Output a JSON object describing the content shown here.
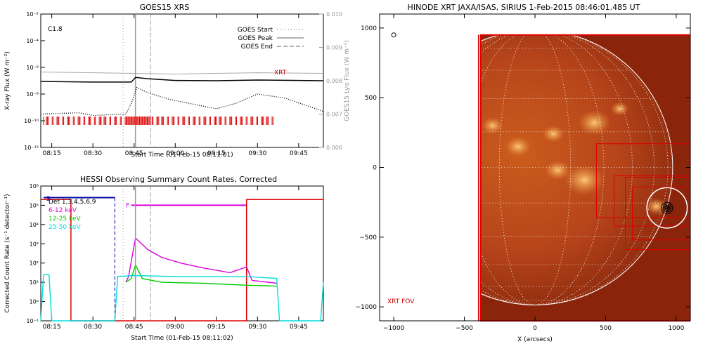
{
  "chart_data": [
    {
      "type": "line",
      "title": "GOES15 XRS",
      "xlabel": "Start Time (01-Feb-15 08:11:01)",
      "ylabel": "X-ray Flux (W m⁻²)",
      "y2label": "GOES15 Lyα Flux (W m⁻²)",
      "ylog": true,
      "ylim_exp": [
        -12,
        -2
      ],
      "y_ticks": [
        "10⁻¹²",
        "10⁻¹⁰",
        "10⁻⁸",
        "10⁻⁶",
        "10⁻⁴",
        "10⁻²"
      ],
      "y2lim": [
        0.006,
        0.01
      ],
      "y2_ticks": [
        "0.006",
        "0.007",
        "0.008",
        "0.009",
        "0.010"
      ],
      "x_ticks": [
        "08:15",
        "08:30",
        "08:45",
        "09:00",
        "09:15",
        "09:30",
        "09:45"
      ],
      "x_tick_minutes": [
        15,
        30,
        45,
        60,
        75,
        90,
        105
      ],
      "xlim_minutes": [
        11,
        114
      ],
      "flare_class": "C1.8",
      "legend": [
        {
          "label": "GOES Start",
          "style": "dotted"
        },
        {
          "label": "GOES Peak",
          "style": "solid"
        },
        {
          "label": "GOES End",
          "style": "dashed"
        }
      ],
      "events_minutes": {
        "start": 41,
        "peak": 45.5,
        "end": 51
      },
      "xrt_label": "XRT",
      "series": [
        {
          "name": "",
          "color": "#000000",
          "log10": [
            [
              11,
              -7.05
            ],
            [
              30,
              -7.1
            ],
            [
              44,
              -7.1
            ],
            [
              45.5,
              -6.75
            ],
            [
              50,
              -6.85
            ],
            [
              60,
              -6.98
            ],
            [
              75,
              -7.0
            ],
            [
              90,
              -6.95
            ],
            [
              114,
              -7.0
            ]
          ]
        },
        {
          "name": "",
          "color": "#000000",
          "style": "dotted",
          "log10": [
            [
              11,
              -9.5
            ],
            [
              25,
              -9.4
            ],
            [
              30,
              -9.6
            ],
            [
              42,
              -9.5
            ],
            [
              44,
              -8.7
            ],
            [
              46,
              -7.5
            ],
            [
              50,
              -7.9
            ],
            [
              58,
              -8.4
            ],
            [
              70,
              -8.9
            ],
            [
              75,
              -9.1
            ],
            [
              82,
              -8.7
            ],
            [
              90,
              -8.0
            ],
            [
              100,
              -8.3
            ],
            [
              114,
              -9.3
            ]
          ]
        },
        {
          "name": "",
          "color": "#aaaaaa",
          "log10": [
            [
              11,
              -6.35
            ],
            [
              30,
              -6.4
            ],
            [
              45,
              -6.45
            ],
            [
              60,
              -6.5
            ],
            [
              75,
              -6.45
            ],
            [
              90,
              -6.4
            ],
            [
              114,
              -6.45
            ]
          ]
        }
      ],
      "xrt_obs_ranges_minutes": [
        [
          11,
          97
        ]
      ]
    },
    {
      "type": "line",
      "title": "HESSI Observing Summary Count Rates, Corrected",
      "xlabel": "Start Time (01-Feb-15 08:11:02)",
      "ylabel": "Corrected Count Rate (s⁻¹ detector⁻¹)",
      "ylog": true,
      "ylim_exp": [
        -1,
        6
      ],
      "y_ticks": [
        "10⁻¹",
        "10⁰",
        "10¹",
        "10²",
        "10³",
        "10⁴",
        "10⁵",
        "10⁶"
      ],
      "x_ticks": [
        "08:15",
        "08:30",
        "08:45",
        "09:00",
        "09:15",
        "09:30",
        "09:45"
      ],
      "x_tick_minutes": [
        15,
        30,
        45,
        60,
        75,
        90,
        105
      ],
      "xlim_minutes": [
        11,
        114
      ],
      "flags": {
        "s_label": "S",
        "f_label": "F"
      },
      "legend": [
        {
          "label": "Det 1,3,4,5,6,9",
          "color": "#000000"
        },
        {
          "label": "6-12 keV",
          "color": "#dd00dd"
        },
        {
          "label": "12-25 keV",
          "color": "#00cc00"
        },
        {
          "label": "25-50 keV",
          "color": "#00dddd"
        }
      ],
      "series": [
        {
          "name": "6-12 keV",
          "color": "#dd00dd",
          "log10": [
            [
              42,
              1.0
            ],
            [
              43,
              1.3
            ],
            [
              45.5,
              3.3
            ],
            [
              50,
              2.7
            ],
            [
              55,
              2.3
            ],
            [
              62,
              2.0
            ],
            [
              70,
              1.75
            ],
            [
              80,
              1.5
            ],
            [
              86,
              1.8
            ],
            [
              88,
              1.1
            ],
            [
              97,
              0.95
            ]
          ]
        },
        {
          "name": "12-25 keV",
          "color": "#00cc00",
          "log10": [
            [
              42,
              1.0
            ],
            [
              44,
              1.2
            ],
            [
              45.5,
              1.9
            ],
            [
              48,
              1.2
            ],
            [
              55,
              1.0
            ],
            [
              70,
              0.95
            ],
            [
              86,
              0.85
            ],
            [
              97,
              0.8
            ]
          ]
        },
        {
          "name": "25-50 keV",
          "color": "#00dddd",
          "log10": [
            [
              11,
              -1
            ],
            [
              12,
              1.4
            ],
            [
              14,
              1.4
            ],
            [
              15,
              -1
            ],
            [
              38,
              -1
            ],
            [
              39,
              1.3
            ],
            [
              45,
              1.35
            ],
            [
              60,
              1.3
            ],
            [
              86,
              1.3
            ],
            [
              97,
              1.2
            ],
            [
              98,
              -1
            ],
            [
              113,
              -1
            ],
            [
              114,
              1.0
            ]
          ]
        }
      ],
      "red_segments_log10": [
        [
          11,
          5.3
        ],
        [
          22,
          5.3
        ],
        [
          22,
          -1
        ],
        [
          86,
          -1
        ],
        [
          86,
          5.3
        ],
        [
          114,
          5.3
        ]
      ]
    },
    {
      "type": "image",
      "title": "HINODE XRT JAXA/ISAS, SIRIUS   1-Feb-2015 08:46:01.485 UT",
      "xlabel": "X (arcsecs)",
      "x_ticks": [
        "−1000",
        "−500",
        "0",
        "500",
        "1000"
      ],
      "y_ticks": [
        "−1000",
        "−500",
        "0",
        "500",
        "1000"
      ],
      "xlim": [
        -1100,
        1100
      ],
      "ylim": [
        -1100,
        1100
      ],
      "fov_label": "XRT FOV",
      "solar_radius_arcsec": 975,
      "flare_location_arcsec": [
        935,
        -290
      ]
    }
  ]
}
